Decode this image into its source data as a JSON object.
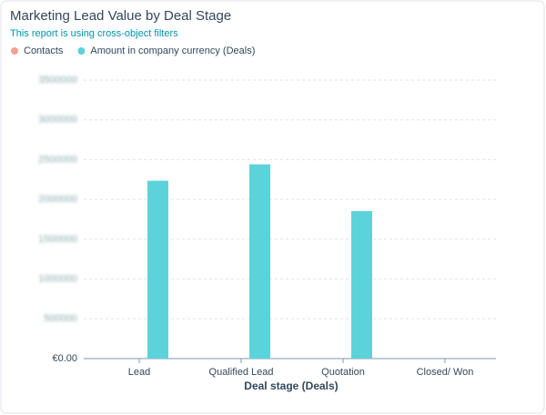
{
  "chart_data": {
    "type": "bar",
    "title": "Marketing Lead Value by Deal Stage",
    "subtitle": "This report is using cross-object filters",
    "x_label": "Deal stage (Deals)",
    "categories": [
      "Lead",
      "Qualified Lead",
      "Quotation",
      "Closed/ Won"
    ],
    "series": [
      {
        "name": "Contacts",
        "color": "#f2a28f",
        "values": [
          0,
          0,
          0,
          0
        ]
      },
      {
        "name": "Amount in company currency (Deals)",
        "color": "#5cd3da",
        "values": [
          2235000,
          2441000,
          1853000,
          0
        ]
      }
    ],
    "ylim": [
      0,
      3500000
    ],
    "yticks": [
      {
        "value": 0,
        "label": "€0.00"
      },
      500000,
      1000000,
      1500000,
      2000000,
      2500000,
      3000000,
      3500000
    ],
    "grid": true
  }
}
